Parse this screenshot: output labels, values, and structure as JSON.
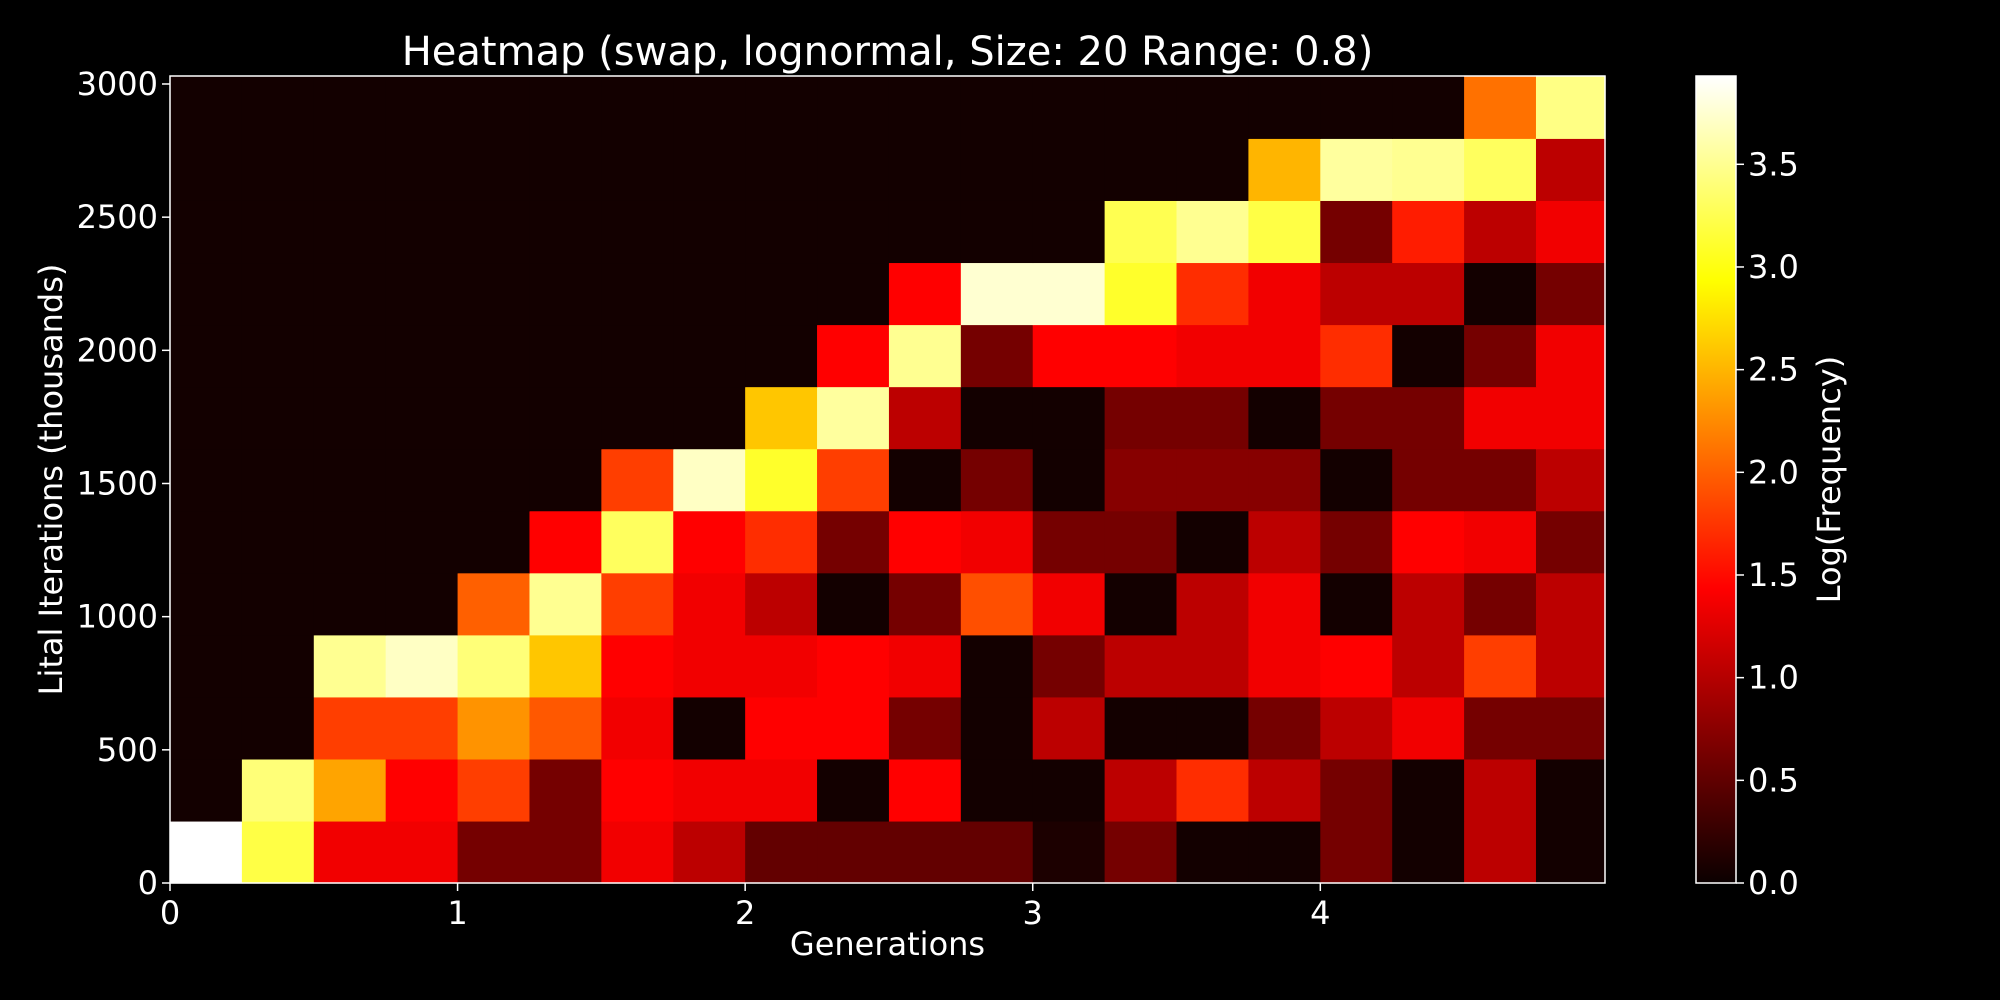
{
  "chart_data": {
    "type": "heatmap",
    "title": "Heatmap (swap, lognormal, Size: 20 Range: 0.8)",
    "xlabel": "Generations",
    "ylabel": "Lital Iterations (thousands)",
    "colorbar_label": "Log(Frequency)",
    "colormap": "hot",
    "xlim": [
      0,
      4.99
    ],
    "ylim": [
      0,
      3030
    ],
    "x_ticks": [
      0,
      1,
      2,
      3,
      4
    ],
    "y_ticks": [
      0,
      500,
      1000,
      1500,
      2000,
      2500,
      3000
    ],
    "colorbar_range": [
      0,
      3.93
    ],
    "colorbar_ticks": [
      "0.0",
      "0.5",
      "1.0",
      "1.5",
      "2.0",
      "2.5",
      "3.0",
      "3.5"
    ],
    "x_edges": [
      0,
      0.25,
      0.5,
      0.75,
      1.0,
      1.25,
      1.5,
      1.75,
      2.0,
      2.25,
      2.5,
      2.75,
      3.0,
      3.25,
      3.5,
      3.75,
      4.0,
      4.25,
      4.5,
      4.75,
      4.99
    ],
    "y_edges": [
      0,
      233,
      466,
      699,
      932,
      1165,
      1398,
      1631,
      1864,
      2097,
      2330,
      2563,
      2796,
      3030
    ],
    "values": [
      [
        3.93,
        3.2,
        1.3,
        1.3,
        0.6,
        0.6,
        1.3,
        1.0,
        0.5,
        0.5,
        0.5,
        0.5,
        0.1,
        0.6,
        0.05,
        0.05,
        0.6,
        0.05,
        1.0,
        0.05
      ],
      [
        0.05,
        3.4,
        2.4,
        1.4,
        1.8,
        0.6,
        1.4,
        1.3,
        1.3,
        0.05,
        1.4,
        0.05,
        0.05,
        1.0,
        1.7,
        1.0,
        0.6,
        0.05,
        1.0,
        0.05
      ],
      [
        0.05,
        0.05,
        1.8,
        1.8,
        2.3,
        1.95,
        1.3,
        0.05,
        1.4,
        1.4,
        0.6,
        0.05,
        1.0,
        0.05,
        0.05,
        0.6,
        1.0,
        1.3,
        0.6,
        0.6
      ],
      [
        0.05,
        0.05,
        3.5,
        3.7,
        3.4,
        2.6,
        1.4,
        1.3,
        1.3,
        1.4,
        1.3,
        0.05,
        0.6,
        1.0,
        1.0,
        1.3,
        1.4,
        1.0,
        1.8,
        1.0
      ],
      [
        0.05,
        0.05,
        0.05,
        0.05,
        2.0,
        3.5,
        1.8,
        1.3,
        1.0,
        0.05,
        0.6,
        1.9,
        1.3,
        0.05,
        1.0,
        1.3,
        0.05,
        1.0,
        0.6,
        1.0
      ],
      [
        0.05,
        0.05,
        0.05,
        0.05,
        0.05,
        1.4,
        3.3,
        1.4,
        1.7,
        0.6,
        1.4,
        1.3,
        0.6,
        0.6,
        0.05,
        1.0,
        0.6,
        1.4,
        1.3,
        0.6
      ],
      [
        0.05,
        0.05,
        0.05,
        0.05,
        0.05,
        0.05,
        1.8,
        3.7,
        3.1,
        1.8,
        0.05,
        0.6,
        0.05,
        0.7,
        0.7,
        0.7,
        0.05,
        0.6,
        0.6,
        1.0
      ],
      [
        0.05,
        0.05,
        0.05,
        0.05,
        0.05,
        0.05,
        0.05,
        0.05,
        2.6,
        3.55,
        1.0,
        0.05,
        0.05,
        0.6,
        0.6,
        0.05,
        0.6,
        0.6,
        1.3,
        1.3
      ],
      [
        0.05,
        0.05,
        0.05,
        0.05,
        0.05,
        0.05,
        0.05,
        0.05,
        0.05,
        1.4,
        3.5,
        0.6,
        1.4,
        1.4,
        1.3,
        1.3,
        1.7,
        0.05,
        0.6,
        1.3
      ],
      [
        0.05,
        0.05,
        0.05,
        0.05,
        0.05,
        0.05,
        0.05,
        0.05,
        0.05,
        0.05,
        1.4,
        3.75,
        3.75,
        3.1,
        1.7,
        1.3,
        1.0,
        1.0,
        0.05,
        0.6
      ],
      [
        0.05,
        0.05,
        0.05,
        0.05,
        0.05,
        0.05,
        0.05,
        0.05,
        0.05,
        0.05,
        0.05,
        0.05,
        0.05,
        3.25,
        3.5,
        3.2,
        0.6,
        1.6,
        1.0,
        1.3
      ],
      [
        0.05,
        0.05,
        0.05,
        0.05,
        0.05,
        0.05,
        0.05,
        0.05,
        0.05,
        0.05,
        0.05,
        0.05,
        0.05,
        0.05,
        0.05,
        2.5,
        3.55,
        3.5,
        3.3,
        1.0
      ],
      [
        0.05,
        0.05,
        0.05,
        0.05,
        0.05,
        0.05,
        0.05,
        0.05,
        0.05,
        0.05,
        0.05,
        0.05,
        0.05,
        0.05,
        0.05,
        0.05,
        0.05,
        0.05,
        2.1,
        3.45
      ]
    ]
  }
}
